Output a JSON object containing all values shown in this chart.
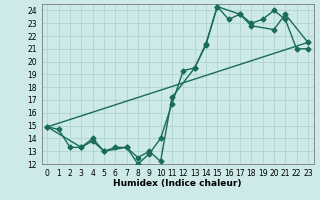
{
  "xlabel": "Humidex (Indice chaleur)",
  "background_color": "#cdeae8",
  "grid_color": "#aad0ce",
  "line_color": "#1a6b5a",
  "xlim": [
    -0.5,
    23.5
  ],
  "ylim": [
    12,
    24.5
  ],
  "xticks": [
    0,
    1,
    2,
    3,
    4,
    5,
    6,
    7,
    8,
    9,
    10,
    11,
    12,
    13,
    14,
    15,
    16,
    17,
    18,
    19,
    20,
    21,
    22,
    23
  ],
  "yticks": [
    12,
    13,
    14,
    15,
    16,
    17,
    18,
    19,
    20,
    21,
    22,
    23,
    24
  ],
  "series1_x": [
    0,
    1,
    2,
    3,
    4,
    5,
    6,
    7,
    8,
    9,
    10,
    11,
    12,
    13,
    14,
    15,
    16,
    17,
    18,
    19,
    20,
    21,
    22,
    23
  ],
  "series1_y": [
    14.9,
    14.7,
    13.3,
    13.3,
    14.0,
    13.0,
    13.3,
    13.3,
    12.0,
    12.8,
    14.0,
    16.7,
    19.3,
    19.5,
    21.3,
    24.3,
    23.3,
    23.7,
    23.0,
    23.3,
    24.0,
    23.3,
    21.0,
    21.0
  ],
  "series2_x": [
    0,
    3,
    4,
    5,
    7,
    8,
    9,
    10,
    11,
    13,
    14,
    15,
    17,
    18,
    20,
    21,
    23
  ],
  "series2_y": [
    14.9,
    13.3,
    13.8,
    13.0,
    13.3,
    12.5,
    13.0,
    12.2,
    17.2,
    19.5,
    21.4,
    24.3,
    23.7,
    22.8,
    22.5,
    23.7,
    21.5
  ],
  "series3_x": [
    0,
    23
  ],
  "series3_y": [
    14.9,
    21.5
  ],
  "marker_size": 2.5,
  "linewidth": 1.0,
  "xlabel_fontsize": 6.5,
  "tick_fontsize": 5.5
}
